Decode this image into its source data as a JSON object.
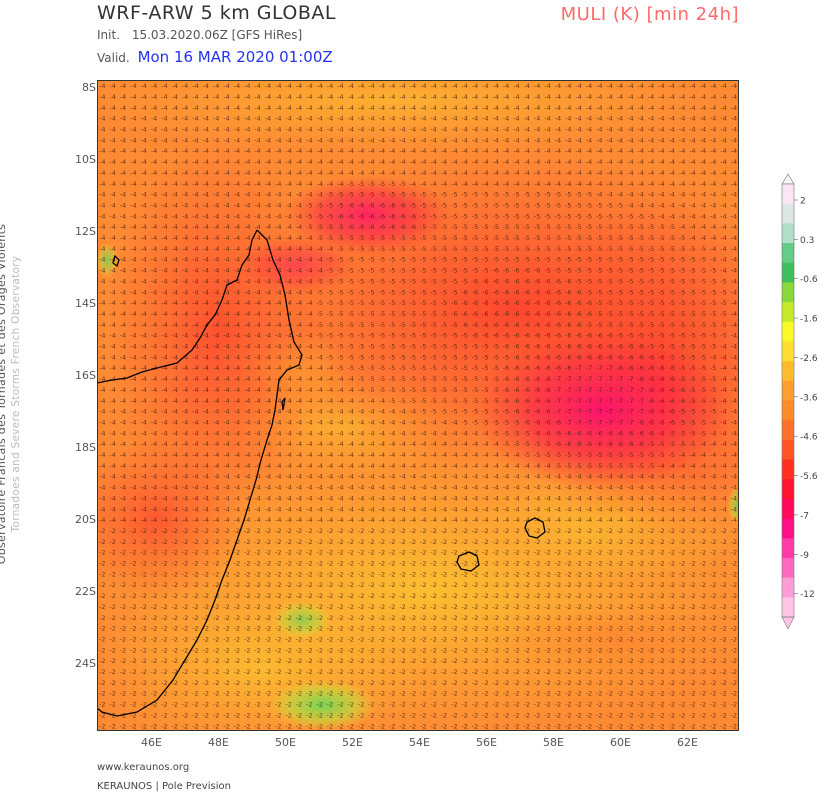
{
  "header": {
    "model_title": "WRF-ARW 5 km GLOBAL",
    "init_label": "Init.",
    "init_value": "15.03.2020.06Z [GFS HiRes]",
    "valid_label": "Valid.",
    "valid_value": "Mon 16 MAR 2020 01:00Z",
    "variable_title": "MULI (K) [min 24h]"
  },
  "side_credit": {
    "line1": "Observatoire Francais des Tornades et des Orages Violents",
    "line2": "Tornadoes and Severe Storms French Observatory"
  },
  "map": {
    "region": "Madagascar / SW Indian Ocean",
    "lat_ticks": [
      "8S",
      "10S",
      "12S",
      "14S",
      "16S",
      "18S",
      "20S",
      "22S",
      "24S"
    ],
    "lon_ticks": [
      "46E",
      "48E",
      "50E",
      "52E",
      "54E",
      "56E",
      "58E",
      "60E",
      "62E"
    ],
    "grid_value_range": [
      -9,
      -2
    ]
  },
  "colorbar": {
    "labels": [
      "2",
      "0.3",
      "-0.6",
      "-1.6",
      "-2.6",
      "-3.6",
      "-4.6",
      "-5.6",
      "-7",
      "-9",
      "-12"
    ],
    "colors": [
      "#fde6f3",
      "#dde8e6",
      "#b0e0c8",
      "#64cc88",
      "#3fc05c",
      "#8ad83a",
      "#c6ea2a",
      "#fafa28",
      "#ffe032",
      "#ffbc2e",
      "#ff9e2e",
      "#ff8a2a",
      "#ff7028",
      "#ff5426",
      "#ff3022",
      "#ff1432",
      "#ff0a5a",
      "#ff1088",
      "#ff3aa8",
      "#ff6ac0",
      "#ff9cd6",
      "#ffc4e6"
    ]
  },
  "footer": {
    "url": "www.keraunos.org",
    "brand": "KERAUNOS | Pole Prevision"
  }
}
